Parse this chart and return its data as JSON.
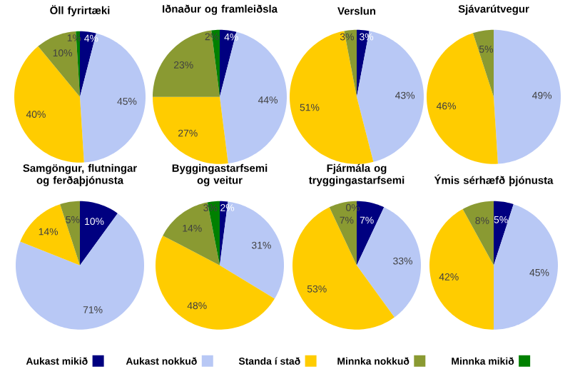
{
  "chart_data": [
    {
      "type": "pie",
      "title": "Öll fyrirtæki",
      "categories": [
        "Aukast mikið",
        "Aukast nokkuð",
        "Standa í stað",
        "Minnka nokkuð",
        "Minnka mikið"
      ],
      "values": [
        4,
        45,
        40,
        10,
        1
      ],
      "value_labels": [
        "4%",
        "45%",
        "40%",
        "10%",
        "1%"
      ],
      "colors": [
        "#000080",
        "#b8c8f5",
        "#ffcc00",
        "#8a9a32",
        "#008000"
      ],
      "legend": "bottom"
    },
    {
      "type": "pie",
      "title": "Iðnaður og framleiðsla",
      "values": [
        4,
        44,
        27,
        23,
        2
      ],
      "value_labels": [
        "4%",
        "44%",
        "27%",
        "23%",
        "2%"
      ],
      "colors": [
        "#000080",
        "#b8c8f5",
        "#ffcc00",
        "#8a9a32",
        "#008000"
      ]
    },
    {
      "type": "pie",
      "title": "Verslun",
      "values": [
        3,
        43,
        51,
        3,
        0
      ],
      "value_labels": [
        "3%",
        "43%",
        "51%",
        "3%",
        null
      ],
      "colors": [
        "#000080",
        "#b8c8f5",
        "#ffcc00",
        "#8a9a32",
        "#008000"
      ]
    },
    {
      "type": "pie",
      "title": "Sjávarútvegur",
      "values": [
        0,
        49,
        46,
        5,
        0
      ],
      "value_labels": [
        null,
        "49%",
        "46%",
        "5%",
        null
      ],
      "colors": [
        "#000080",
        "#b8c8f5",
        "#ffcc00",
        "#8a9a32",
        "#008000"
      ]
    },
    {
      "type": "pie",
      "title": "Samgöngur, flutningar og ferðaþjónusta",
      "values": [
        10,
        71,
        14,
        5,
        0
      ],
      "value_labels": [
        "10%",
        "71%",
        "14%",
        "5%",
        null
      ],
      "colors": [
        "#000080",
        "#b8c8f5",
        "#ffcc00",
        "#8a9a32",
        "#008000"
      ]
    },
    {
      "type": "pie",
      "title": "Byggingastarfsemi og veitur",
      "values": [
        2,
        31,
        48,
        14,
        3
      ],
      "value_labels": [
        "2%",
        "31%",
        "48%",
        "14%",
        "3%"
      ],
      "colors": [
        "#000080",
        "#b8c8f5",
        "#ffcc00",
        "#8a9a32",
        "#008000"
      ]
    },
    {
      "type": "pie",
      "title": "Fjármála og tryggingastarfsemi",
      "values": [
        7,
        33,
        53,
        7,
        0
      ],
      "value_labels": [
        "7%",
        "33%",
        "53%",
        "7%",
        "0%"
      ],
      "colors": [
        "#000080",
        "#b8c8f5",
        "#ffcc00",
        "#8a9a32",
        "#008000"
      ]
    },
    {
      "type": "pie",
      "title": "Ýmis sérhæfð þjónusta",
      "values": [
        5,
        45,
        42,
        8,
        0
      ],
      "value_labels": [
        "5%",
        "45%",
        "42%",
        "8%",
        null
      ],
      "colors": [
        "#000080",
        "#b8c8f5",
        "#ffcc00",
        "#8a9a32",
        "#008000"
      ]
    }
  ]
}
